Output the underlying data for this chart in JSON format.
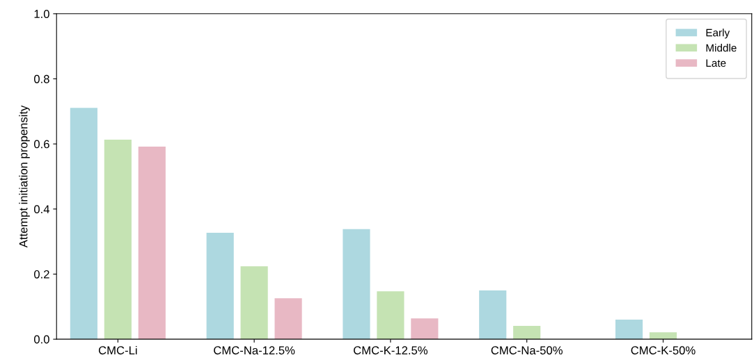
{
  "chart_data": {
    "type": "bar",
    "ylabel": "Attempt initiation propensity",
    "categories": [
      "CMC-Li",
      "CMC-Na-12.5%",
      "CMC-K-12.5%",
      "CMC-Na-50%",
      "CMC-K-50%"
    ],
    "series": [
      {
        "name": "Early",
        "color": "#add8e0",
        "values": [
          0.711,
          0.327,
          0.338,
          0.15,
          0.06
        ]
      },
      {
        "name": "Middle",
        "color": "#c5e3b3",
        "values": [
          0.613,
          0.224,
          0.147,
          0.041,
          0.021
        ]
      },
      {
        "name": "Late",
        "color": "#e8b8c4",
        "values": [
          0.592,
          0.126,
          0.064,
          0,
          0
        ]
      }
    ],
    "ylim": [
      0,
      1.0
    ],
    "yticks": [
      {
        "value": 0,
        "label": "0.0"
      },
      {
        "value": 0.2,
        "label": "0.2"
      },
      {
        "value": 0.4,
        "label": "0.4"
      },
      {
        "value": 0.6,
        "label": "0.6"
      },
      {
        "value": 0.8,
        "label": "0.8"
      },
      {
        "value": 1,
        "label": "1.0"
      }
    ],
    "grid": false,
    "legend": "top right"
  }
}
